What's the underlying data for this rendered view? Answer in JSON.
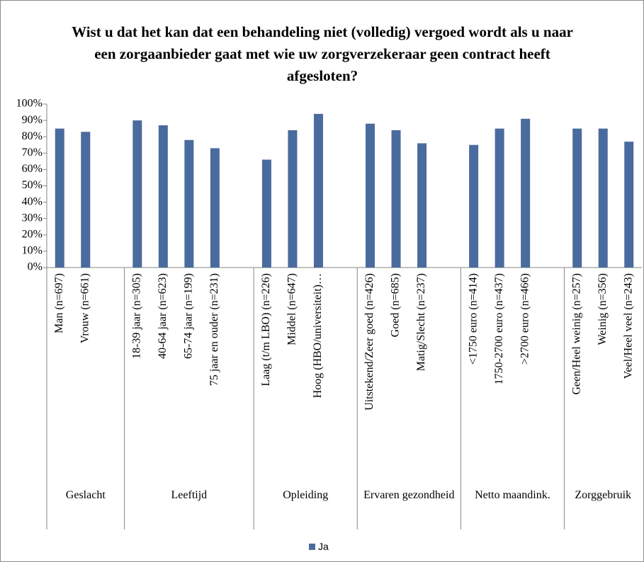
{
  "chart_data": {
    "type": "bar",
    "title": "Wist u dat het kan dat een behandeling niet (volledig) vergoed wordt als u naar een zorgaanbieder gaat met wie uw zorgverzekeraar geen contract heeft afgesloten?",
    "categories": [
      "Man (n=697)",
      "Vrouw (n=661)",
      null,
      "18-39 jaar (n=305)",
      "40-64 jaar (n=623)",
      "65-74 jaar (n=199)",
      "75 jaar en ouder (n=231)",
      null,
      "Laag (t/m LBO) (n=226)",
      "Middel (n=647)",
      "Hoog (HBO/universiteit)…",
      null,
      "Uitstekend/Zeer goed (n=426)",
      "Goed (n=685)",
      "Matig/Slecht (n=237)",
      null,
      "<1750 euro (n=414)",
      "1750-2700 euro (n=437)",
      ">2700 euro (n=466)",
      null,
      "Geen/Heel weinig (n=257)",
      "Weinig (n=356)",
      "Veel/Heel veel (n=243)"
    ],
    "groups": [
      "Geslacht",
      "Leeftijd",
      "Opleiding",
      "Ervaren gezondheid",
      "Netto maandink.",
      "Zorggebruik"
    ],
    "series": [
      {
        "name": "Ja",
        "color": "#4a6b9d",
        "values": [
          85,
          83,
          null,
          90,
          87,
          78,
          73,
          null,
          66,
          84,
          94,
          null,
          88,
          84,
          76,
          null,
          75,
          85,
          91,
          null,
          85,
          85,
          77
        ]
      }
    ],
    "ylim": [
      0,
      100
    ],
    "yticks": [
      {
        "value": 0,
        "label": "0%"
      },
      {
        "value": 10,
        "label": "10%"
      },
      {
        "value": 20,
        "label": "20%"
      },
      {
        "value": 30,
        "label": "30%"
      },
      {
        "value": 40,
        "label": "40%"
      },
      {
        "value": 50,
        "label": "50%"
      },
      {
        "value": 60,
        "label": "60%"
      },
      {
        "value": 70,
        "label": "70%"
      },
      {
        "value": 80,
        "label": "80%"
      },
      {
        "value": 90,
        "label": "90%"
      },
      {
        "value": 100,
        "label": "100%"
      }
    ],
    "grid": false,
    "legend": "bottom"
  }
}
